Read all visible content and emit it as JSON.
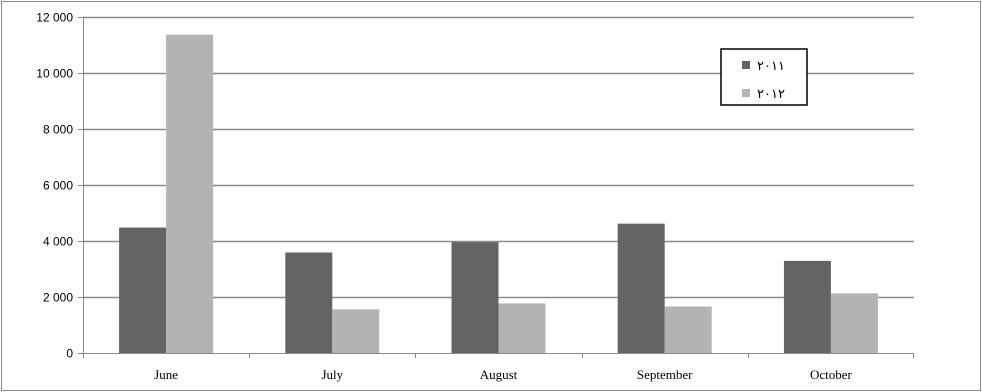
{
  "chart_data": {
    "type": "bar",
    "title": "",
    "xlabel": "",
    "ylabel": "",
    "categories": [
      "June",
      "July",
      "August",
      "September",
      "October"
    ],
    "series": [
      {
        "name": "٢٠١١",
        "values": [
          4480,
          3590,
          3960,
          4620,
          3290
        ],
        "color": "#646464"
      },
      {
        "name": "٢٠١٢",
        "values": [
          11370,
          1560,
          1770,
          1660,
          2130
        ],
        "color": "#b3b3b3"
      }
    ],
    "ylim": [
      0,
      12000
    ],
    "yticks": [
      0,
      2000,
      4000,
      6000,
      8000,
      10000,
      12000
    ],
    "ytick_labels": [
      "0",
      "2 000",
      "4 000",
      "6 000",
      "8 000",
      "10 000",
      "12 000"
    ],
    "grid": true,
    "legend_position": "top-right"
  }
}
